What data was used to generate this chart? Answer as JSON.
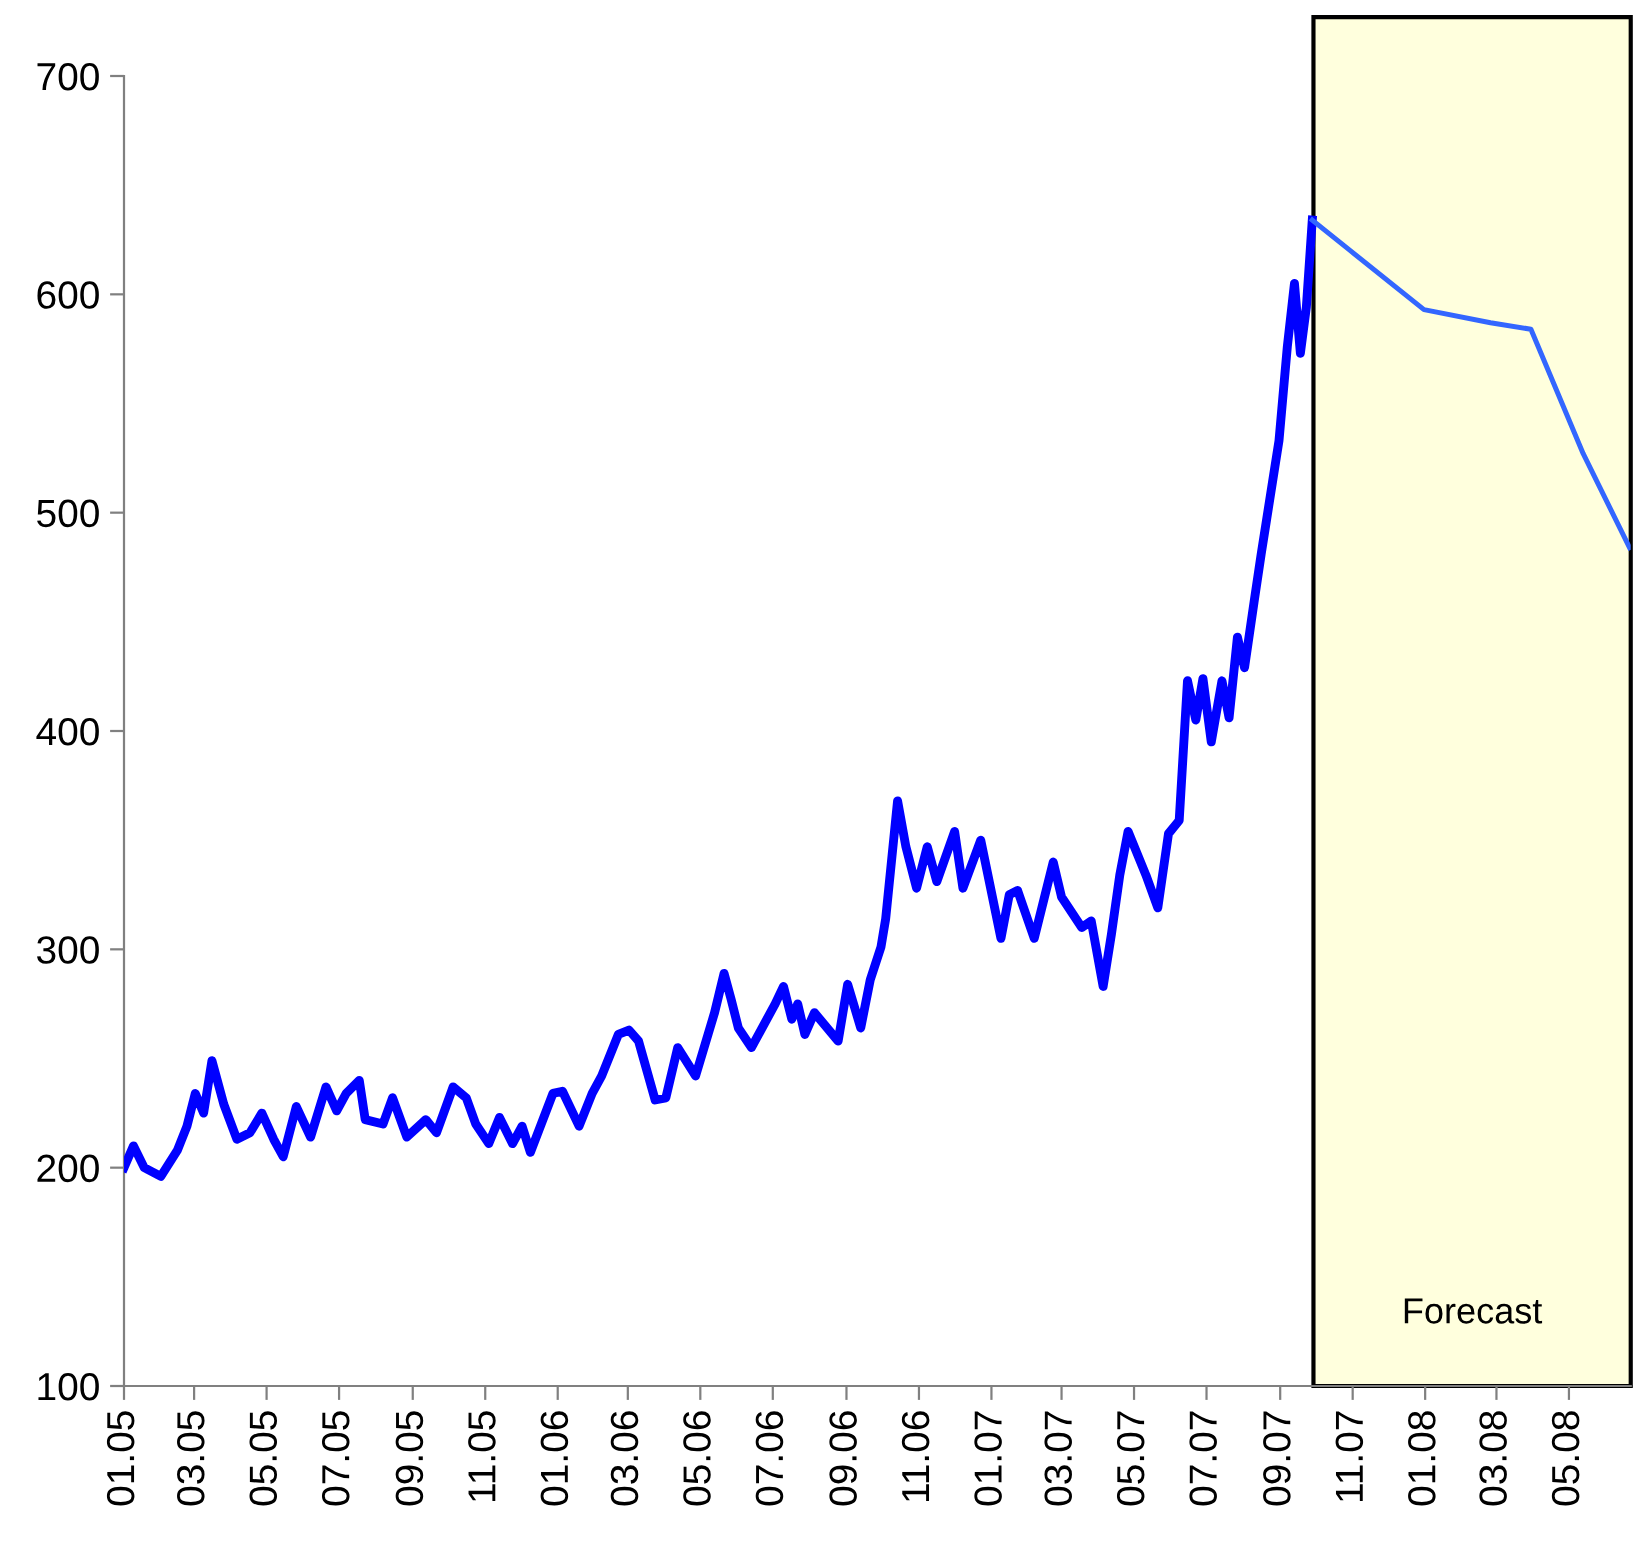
{
  "chart_data": {
    "type": "line",
    "xlim": [
      "2005-01-01",
      "2008-06-22"
    ],
    "ylim": [
      100,
      700
    ],
    "yticks": [
      100,
      200,
      300,
      400,
      500,
      600,
      700
    ],
    "xticks": [
      {
        "value": "2005-01-01",
        "label": "01.05"
      },
      {
        "value": "2005-03-01",
        "label": "03.05"
      },
      {
        "value": "2005-05-01",
        "label": "05.05"
      },
      {
        "value": "2005-07-01",
        "label": "07.05"
      },
      {
        "value": "2005-09-01",
        "label": "09.05"
      },
      {
        "value": "2005-11-01",
        "label": "11.05"
      },
      {
        "value": "2006-01-01",
        "label": "01.06"
      },
      {
        "value": "2006-03-01",
        "label": "03.06"
      },
      {
        "value": "2006-05-01",
        "label": "05.06"
      },
      {
        "value": "2006-07-01",
        "label": "07.06"
      },
      {
        "value": "2006-09-01",
        "label": "09.06"
      },
      {
        "value": "2006-11-01",
        "label": "11.06"
      },
      {
        "value": "2007-01-01",
        "label": "01.07"
      },
      {
        "value": "2007-03-01",
        "label": "03.07"
      },
      {
        "value": "2007-05-01",
        "label": "05.07"
      },
      {
        "value": "2007-07-01",
        "label": "07.07"
      },
      {
        "value": "2007-09-01",
        "label": "09.07"
      },
      {
        "value": "2007-11-01",
        "label": "11.07"
      },
      {
        "value": "2008-01-01",
        "label": "01.08"
      },
      {
        "value": "2008-03-01",
        "label": "03.08"
      },
      {
        "value": "2008-05-01",
        "label": "05.08"
      }
    ],
    "grid": false,
    "legend": false,
    "bands": [
      {
        "axis": "x",
        "from": "2007-09-29",
        "to": "2008-06-22",
        "label": "Forecast",
        "color": "#ffffdd"
      }
    ],
    "series": [
      {
        "color": "#0000ff",
        "line_style": "solid",
        "x": [
          "2005-01-01",
          "2005-01-09",
          "2005-01-18",
          "2005-02-01",
          "2005-02-15",
          "2005-02-23",
          "2005-03-02",
          "2005-03-09",
          "2005-03-16",
          "2005-03-26",
          "2005-04-06",
          "2005-04-17",
          "2005-04-27",
          "2005-05-07",
          "2005-05-15",
          "2005-05-26",
          "2005-06-07",
          "2005-06-20",
          "2005-06-29",
          "2005-07-07",
          "2005-07-18",
          "2005-07-23",
          "2005-08-07",
          "2005-08-15",
          "2005-08-27",
          "2005-09-12",
          "2005-09-21",
          "2005-10-05",
          "2005-10-16",
          "2005-10-24",
          "2005-11-04",
          "2005-11-13",
          "2005-11-24",
          "2005-12-02",
          "2005-12-09",
          "2005-12-28",
          "2006-01-05",
          "2006-01-19",
          "2006-01-30",
          "2006-02-07",
          "2006-02-21",
          "2006-03-02",
          "2006-03-10",
          "2006-03-24",
          "2006-04-02",
          "2006-04-12",
          "2006-04-27",
          "2006-05-13",
          "2006-05-21",
          "2006-05-27",
          "2006-06-02",
          "2006-06-13",
          "2006-07-03",
          "2006-07-10",
          "2006-07-17",
          "2006-07-22",
          "2006-07-28",
          "2006-08-05",
          "2006-08-25",
          "2006-09-02",
          "2006-09-13",
          "2006-09-21",
          "2006-09-30",
          "2006-10-04",
          "2006-10-14",
          "2006-10-21",
          "2006-10-30",
          "2006-11-08",
          "2006-11-16",
          "2006-12-01",
          "2006-12-08",
          "2006-12-23",
          "2007-01-09",
          "2007-01-16",
          "2007-01-23",
          "2007-02-06",
          "2007-02-22",
          "2007-03-01",
          "2007-03-18",
          "2007-03-26",
          "2007-04-05",
          "2007-04-12",
          "2007-04-19",
          "2007-04-26",
          "2007-05-11",
          "2007-05-21",
          "2007-05-30",
          "2007-06-08",
          "2007-06-15",
          "2007-06-22",
          "2007-06-28",
          "2007-07-05",
          "2007-07-14",
          "2007-07-20",
          "2007-07-27",
          "2007-08-02",
          "2007-08-10",
          "2007-08-16",
          "2007-08-31",
          "2007-09-07",
          "2007-09-13",
          "2007-09-18",
          "2007-09-23",
          "2007-09-28"
        ],
        "values": [
          200,
          210,
          200,
          196,
          208,
          219,
          234,
          225,
          249,
          229,
          213,
          216,
          225,
          213,
          205,
          228,
          214,
          237,
          226,
          234,
          240,
          222,
          220,
          232,
          214,
          222,
          216,
          237,
          232,
          220,
          211,
          223,
          211,
          219,
          207,
          234,
          235,
          219,
          234,
          242,
          261,
          263,
          258,
          231,
          232,
          255,
          242,
          271,
          289,
          277,
          264,
          255,
          275,
          283,
          268,
          275,
          261,
          271,
          258,
          284,
          264,
          286,
          301,
          314,
          368,
          347,
          328,
          347,
          331,
          354,
          328,
          350,
          305,
          325,
          327,
          305,
          340,
          324,
          310,
          313,
          283,
          307,
          334,
          354,
          334,
          319,
          353,
          359,
          423,
          405,
          424,
          395,
          423,
          406,
          443,
          429,
          459,
          481,
          533,
          576,
          605,
          573,
          594,
          634
        ]
      },
      {
        "color": "#3366ff",
        "line_style": "solid",
        "x": [
          "2007-09-28",
          "2007-10-30",
          "2007-12-31",
          "2008-02-25",
          "2008-03-30",
          "2008-05-13",
          "2008-06-21"
        ],
        "values": [
          634,
          620,
          593,
          587,
          584,
          527,
          484
        ]
      }
    ]
  }
}
